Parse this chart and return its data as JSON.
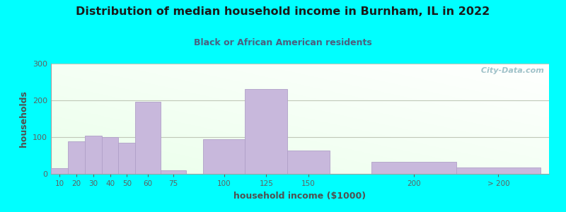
{
  "title": "Distribution of median household income in Burnham, IL in 2022",
  "subtitle": "Black or African American residents",
  "xlabel": "household income ($1000)",
  "ylabel": "households",
  "background_outer": "#00FFFF",
  "bar_color": "#C8B8DC",
  "bar_edge_color": "#B0A0C8",
  "title_color": "#1a1a1a",
  "subtitle_color": "#4a6080",
  "axis_label_color": "#505050",
  "tick_color": "#606060",
  "watermark": " City-Data.com",
  "ylim": [
    0,
    300
  ],
  "yticks": [
    0,
    100,
    200,
    300
  ],
  "categories": [
    "10",
    "20",
    "30",
    "40",
    "50",
    "60",
    "75",
    "100",
    "125",
    "150",
    "200",
    "> 200"
  ],
  "values": [
    15,
    88,
    103,
    100,
    85,
    197,
    10,
    95,
    230,
    63,
    33,
    18
  ],
  "bar_lefts": [
    10,
    20,
    30,
    40,
    50,
    60,
    75,
    100,
    125,
    150,
    200,
    250
  ],
  "bar_widths": [
    10,
    10,
    10,
    10,
    10,
    15,
    15,
    25,
    25,
    25,
    50,
    50
  ],
  "xlim_left": 10,
  "xlim_right": 305
}
